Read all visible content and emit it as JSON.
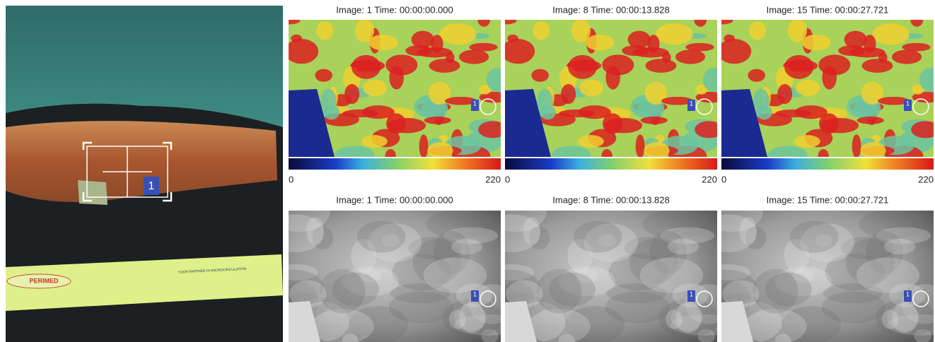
{
  "photo": {
    "roi_label": "1",
    "brand": "PERIMED",
    "tagline": "YOUR PARTNER IN MICROCIRCULATION"
  },
  "perfusion_panels": [
    {
      "title": "Image: 1 Time: 00:00:00.000",
      "scale_min": 0,
      "scale_max": 220,
      "roi_label": "1"
    },
    {
      "title": "Image: 8 Time: 00:00:13.828",
      "scale_min": 0,
      "scale_max": 220,
      "roi_label": "1"
    },
    {
      "title": "Image: 15 Time: 00:00:27.721",
      "scale_min": 0,
      "scale_max": 220,
      "roi_label": "1"
    }
  ],
  "intensity_panels": [
    {
      "title": "Image: 1 Time: 00:00:00.000",
      "roi_label": "1"
    },
    {
      "title": "Image: 8 Time: 00:00:13.828",
      "roi_label": "1"
    },
    {
      "title": "Image: 15 Time: 00:00:27.721",
      "roi_label": "1"
    }
  ]
}
